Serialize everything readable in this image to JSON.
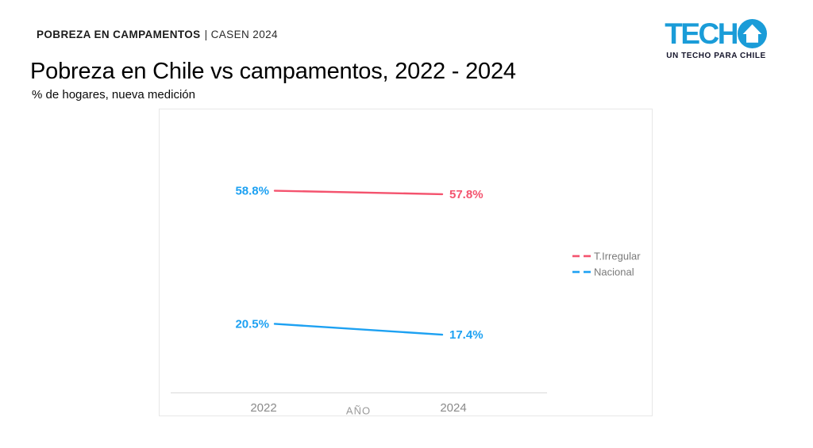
{
  "kicker": {
    "strong": "POBREZA EN CAMPAMENTOS",
    "rest": "| CASEN 2024"
  },
  "logo": {
    "wordmark": "TECH",
    "tagline": "UN TECHO PARA CHILE",
    "brand_blue": "#1a9cd8"
  },
  "title": "Pobreza en Chile vs campamentos, 2022 - 2024",
  "subtitle": "% de hogares, nueva medición",
  "chart_data": {
    "type": "line",
    "x": [
      "2022",
      "2024"
    ],
    "xlabel": "AÑO",
    "grid": false,
    "legend_position": "right",
    "ylim": [
      0,
      80
    ],
    "series": [
      {
        "name": "T.Irregular",
        "values": [
          58.8,
          57.8
        ],
        "labels": [
          "58.8%",
          "57.8%"
        ],
        "line_color": "#f4536e",
        "label_colors": [
          "#1da1f2",
          "#f4536e"
        ]
      },
      {
        "name": "Nacional",
        "values": [
          20.5,
          17.4
        ],
        "labels": [
          "20.5%",
          "17.4%"
        ],
        "line_color": "#1da1f2",
        "label_colors": [
          "#1da1f2",
          "#1da1f2"
        ]
      }
    ],
    "colors": {
      "tick_text": "#8a8a8a",
      "axis_line": "#d9d9d9",
      "axis_title_text": "#9a9a9a",
      "legend_text": "#7a7a7a"
    }
  }
}
